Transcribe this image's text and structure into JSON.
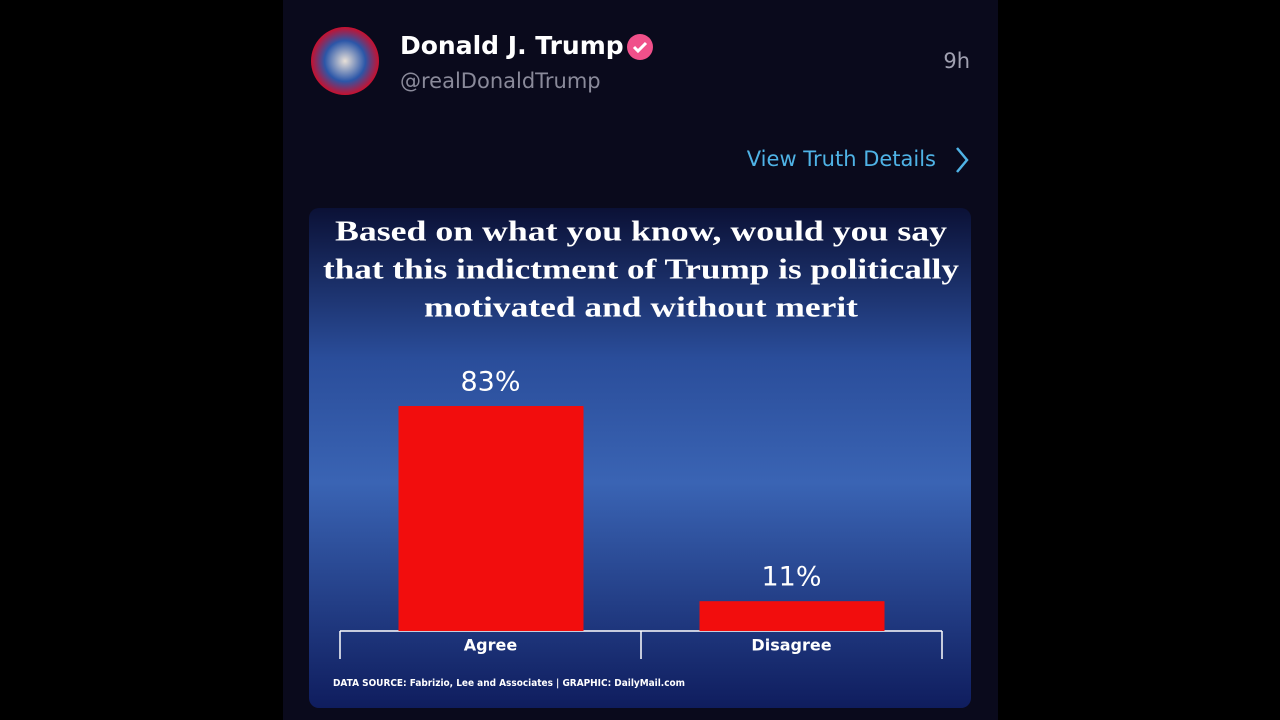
{
  "post": {
    "author": "Donald J. Trump",
    "handle": "@realDonaldTrump",
    "time": "9h",
    "link": "View Truth Details"
  },
  "chart_data": {
    "type": "bar",
    "title_lines": [
      "Based on what you know, would you say",
      "that this indictment of Trump is politically",
      "motivated and without merit"
    ],
    "categories": [
      "Agree",
      "Disagree"
    ],
    "values": [
      83,
      11
    ],
    "value_labels": [
      "83%",
      "11%"
    ],
    "color": "#f20d0d",
    "source": "DATA SOURCE: Fabrizio, Lee and Associates | GRAPHIC: DailyMail.com"
  }
}
